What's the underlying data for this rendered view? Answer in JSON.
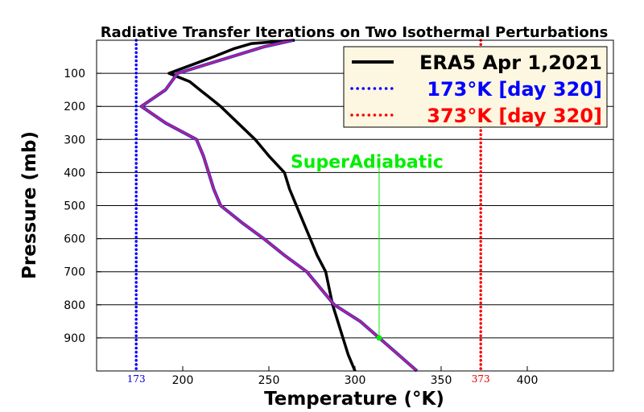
{
  "chart_data": {
    "type": "line",
    "title": "Radiative Transfer Iterations on Two Isothermal Perturbations",
    "xlabel": "Temperature (°K)",
    "ylabel": "Pressure (mb)",
    "xlim": [
      150,
      450
    ],
    "ylim": [
      1000,
      0
    ],
    "grid": "horizontal",
    "legend_position": "top-right",
    "x_ticks": [
      200,
      250,
      300,
      350,
      400
    ],
    "y_ticks": [
      100,
      200,
      300,
      400,
      500,
      600,
      700,
      800,
      900
    ],
    "legend": [
      {
        "label": "ERA5 Apr 1,2021",
        "color": "#000000",
        "style": "solid"
      },
      {
        "label": "173°K [day 320]",
        "color": "#0000ff",
        "style": "dotted"
      },
      {
        "label": "373°K [day 320]",
        "color": "#ff0000",
        "style": "dotted"
      }
    ],
    "series": [
      {
        "name": "ERA5 Apr 1,2021",
        "color": "#000000",
        "points": [
          [
            300,
            1000
          ],
          [
            298,
            975
          ],
          [
            296,
            950
          ],
          [
            293,
            900
          ],
          [
            290,
            850
          ],
          [
            287,
            800
          ],
          [
            285,
            750
          ],
          [
            283,
            700
          ],
          [
            278,
            650
          ],
          [
            274,
            600
          ],
          [
            270,
            550
          ],
          [
            266,
            500
          ],
          [
            262,
            450
          ],
          [
            259,
            400
          ],
          [
            250,
            350
          ],
          [
            242,
            300
          ],
          [
            232,
            250
          ],
          [
            222,
            200
          ],
          [
            210,
            150
          ],
          [
            204,
            125
          ],
          [
            192,
            100
          ],
          [
            205,
            75
          ],
          [
            218,
            50
          ],
          [
            230,
            25
          ],
          [
            240,
            10
          ],
          [
            265,
            0
          ]
        ]
      },
      {
        "name": "173°K [day 320]",
        "color": "#0000ff",
        "style": "dotted",
        "points": [
          [
            173,
            0
          ],
          [
            173,
            1000
          ]
        ]
      },
      {
        "name": "373°K [day 320]",
        "color": "#ff0000",
        "style": "dotted",
        "points": [
          [
            373,
            0
          ],
          [
            373,
            1000
          ]
        ]
      },
      {
        "name": "",
        "color": "#7a1fb0",
        "points": [
          [
            336,
            1000
          ],
          [
            325,
            950
          ],
          [
            314,
            900
          ],
          [
            303,
            850
          ],
          [
            288,
            800
          ],
          [
            280,
            750
          ],
          [
            272,
            700
          ],
          [
            259,
            650
          ],
          [
            247,
            600
          ],
          [
            234,
            550
          ],
          [
            222,
            500
          ],
          [
            218,
            450
          ],
          [
            215,
            400
          ],
          [
            212,
            350
          ],
          [
            208,
            300
          ],
          [
            190,
            250
          ],
          [
            176,
            200
          ],
          [
            190,
            150
          ],
          [
            197,
            100
          ],
          [
            247,
            20
          ],
          [
            264,
            0
          ]
        ]
      }
    ],
    "annotations": [
      {
        "text": "SuperAdiabatic",
        "color": "#00ee00",
        "point": [
          314,
          900
        ],
        "text_at": [
          314,
          430
        ]
      },
      {
        "text": "173",
        "color": "#0000cc",
        "at_x": 173,
        "position": "below-axis"
      },
      {
        "text": "373",
        "color": "#dd0000",
        "at_x": 373,
        "position": "below-axis"
      }
    ]
  }
}
